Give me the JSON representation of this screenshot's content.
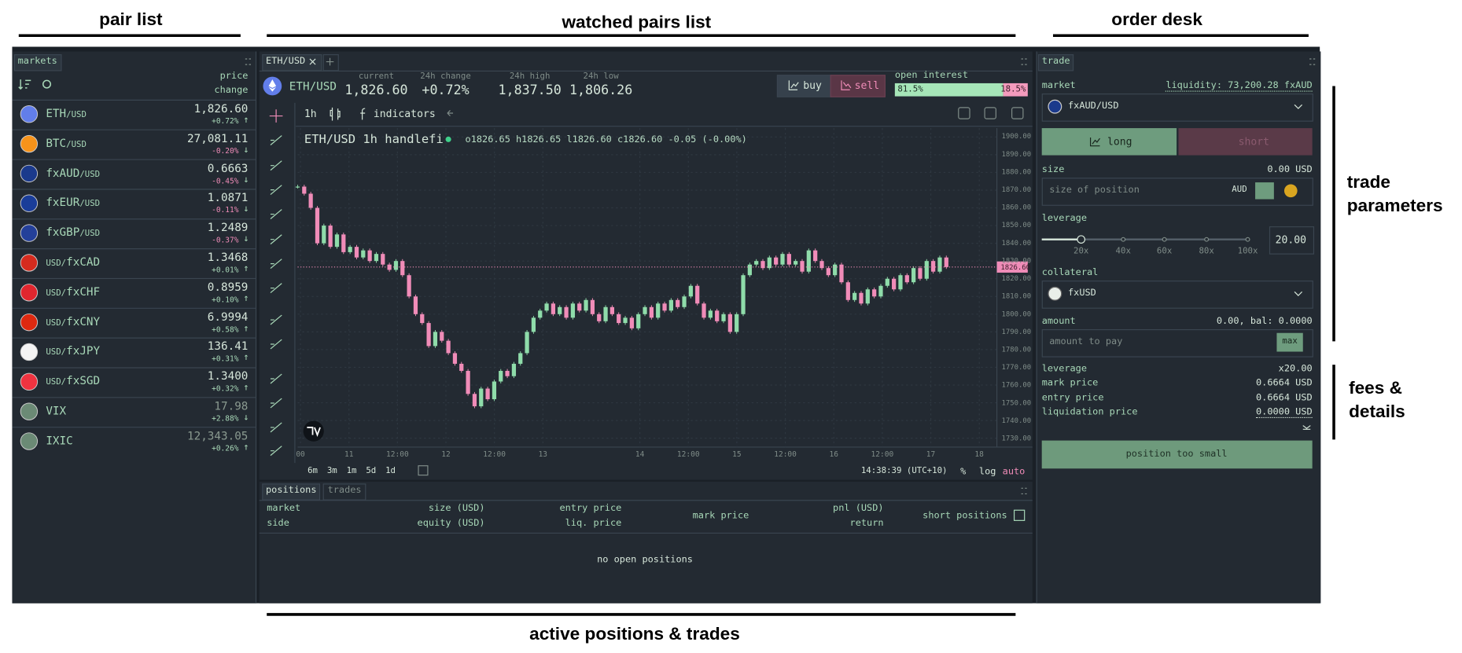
{
  "annotations": {
    "pair_list": "pair list",
    "watched_pairs_list": "watched pairs list",
    "order_desk": "order desk",
    "trade_parameters": "trade parameters",
    "fees_details": "fees & details",
    "active_positions": "active positions & trades"
  },
  "markets": {
    "tab": "markets",
    "column_header": [
      "price",
      "change"
    ],
    "pairs": [
      {
        "name": "ETH",
        "quote": "/USD",
        "price": "1,826.60",
        "change": "+0.72%",
        "arrow": "↑",
        "icon_color": "#627eea"
      },
      {
        "name": "BTC",
        "quote": "/USD",
        "price": "27,081.11",
        "change": "-0.20%",
        "arrow": "↓",
        "icon_color": "#f7931a"
      },
      {
        "name": "fxAUD",
        "quote": "/USD",
        "price": "0.6663",
        "change": "-0.45%",
        "arrow": "↓",
        "icon_color": "#1b3a8c"
      },
      {
        "name": "fxEUR",
        "quote": "/USD",
        "price": "1.0871",
        "change": "-0.11%",
        "arrow": "↓",
        "icon_color": "#1a3d99"
      },
      {
        "name": "fxGBP",
        "quote": "/USD",
        "price": "1.2489",
        "change": "-0.37%",
        "arrow": "↓",
        "icon_color": "#24409a"
      },
      {
        "base": "USD/",
        "name": "fxCAD",
        "price": "1.3468",
        "change": "+0.01%",
        "arrow": "↑",
        "icon_color": "#d52b1e"
      },
      {
        "base": "USD/",
        "name": "fxCHF",
        "price": "0.8959",
        "change": "+0.10%",
        "arrow": "↑",
        "icon_color": "#e0262e"
      },
      {
        "base": "USD/",
        "name": "fxCNY",
        "price": "6.9994",
        "change": "+0.58%",
        "arrow": "↑",
        "icon_color": "#de2910"
      },
      {
        "base": "USD/",
        "name": "fxJPY",
        "price": "136.41",
        "change": "+0.31%",
        "arrow": "↑",
        "icon_color": "#f4f4f4"
      },
      {
        "base": "USD/",
        "name": "fxSGD",
        "price": "1.3400",
        "change": "+0.32%",
        "arrow": "↑",
        "icon_color": "#ef3340"
      },
      {
        "name": "VIX",
        "price": "17.98",
        "change": "+2.88%",
        "arrow": "↓",
        "icon_color": "#6b8a75",
        "price_color": "#8a9a90"
      },
      {
        "name": "IXIC",
        "price": "12,343.05",
        "change": "+0.26%",
        "arrow": "↑",
        "icon_color": "#6b8a75",
        "price_color": "#8a9a90"
      }
    ]
  },
  "chart_panel": {
    "tab": "ETH/USD",
    "ticker": {
      "pair": "ETH/USD",
      "stats": [
        {
          "label": "current",
          "value": "1,826.60"
        },
        {
          "label": "24h change",
          "value": "+0.72%"
        },
        {
          "label": "24h high",
          "value": "1,837.50"
        },
        {
          "label": "24h low",
          "value": "1,806.26"
        }
      ]
    },
    "buy": "buy",
    "sell": "sell",
    "open_interest": {
      "label": "open interest",
      "values": [
        81.5,
        18.5
      ],
      "value_labels": [
        "81.5%",
        "18.5%"
      ]
    },
    "toolbar": {
      "interval": "1h",
      "indicators": "indicators"
    },
    "legend": {
      "title": "ETH/USD 1h handlefi",
      "ohlc": "o1826.65 h1826.65 l1826.60 c1826.60 -0.05 (-0.00%)"
    },
    "chart": {
      "type": "candlestick",
      "closes": [
        1872,
        1868,
        1860,
        1840,
        1850,
        1838,
        1845,
        1835,
        1838,
        1832,
        1836,
        1830,
        1834,
        1828,
        1825,
        1830,
        1822,
        1810,
        1800,
        1795,
        1782,
        1790,
        1785,
        1778,
        1772,
        1768,
        1755,
        1748,
        1758,
        1752,
        1762,
        1768,
        1765,
        1772,
        1778,
        1790,
        1798,
        1802,
        1806,
        1800,
        1804,
        1798,
        1806,
        1802,
        1808,
        1800,
        1796,
        1804,
        1800,
        1795,
        1798,
        1792,
        1800,
        1804,
        1798,
        1806,
        1802,
        1808,
        1804,
        1810,
        1816,
        1806,
        1798,
        1802,
        1796,
        1800,
        1790,
        1800,
        1822,
        1828,
        1830,
        1826,
        1832,
        1828,
        1834,
        1828,
        1830,
        1824,
        1836,
        1830,
        1826,
        1822,
        1828,
        1818,
        1808,
        1812,
        1806,
        1814,
        1810,
        1816,
        1820,
        1814,
        1822,
        1818,
        1826,
        1820,
        1830,
        1824,
        1832,
        1826.6
      ],
      "ylim": [
        1725,
        1905
      ],
      "yticks": [
        {
          "value": 1900,
          "label": "1900.00"
        },
        {
          "value": 1890,
          "label": "1890.00"
        },
        {
          "value": 1880,
          "label": "1880.00"
        },
        {
          "value": 1870,
          "label": "1870.00"
        },
        {
          "value": 1860,
          "label": "1860.00"
        },
        {
          "value": 1850,
          "label": "1850.00"
        },
        {
          "value": 1840,
          "label": "1840.00"
        },
        {
          "value": 1830,
          "label": "1830.00"
        },
        {
          "value": 1820,
          "label": "1820.00"
        },
        {
          "value": 1810,
          "label": "1810.00"
        },
        {
          "value": 1800,
          "label": "1800.00"
        },
        {
          "value": 1790,
          "label": "1790.00"
        },
        {
          "value": 1780,
          "label": "1780.00"
        },
        {
          "value": 1770,
          "label": "1770.00"
        },
        {
          "value": 1760,
          "label": "1760.00"
        },
        {
          "value": 1750,
          "label": "1750.00"
        },
        {
          "value": 1740,
          "label": "1740.00"
        },
        {
          "value": 1730,
          "label": "1730.00"
        }
      ],
      "x_labels": [
        "00",
        "11",
        "12:00",
        "12",
        "12:00",
        "13",
        null,
        "14",
        "12:00",
        "15",
        "12:00",
        "16",
        "12:00",
        "17",
        "18"
      ],
      "last_price": {
        "value": 1826.6,
        "label": "1826.60"
      },
      "up_color": "#8fdcaa",
      "down_color": "#f08cb8",
      "grid": true
    },
    "ranges": [
      "6m",
      "3m",
      "1m",
      "5d",
      "1d"
    ],
    "clock": "14:38:39 (UTC+10)",
    "scale_options": [
      "%",
      "log",
      "auto"
    ]
  },
  "positions_panel": {
    "tabs": [
      "positions",
      "trades"
    ],
    "columns": [
      {
        "top": "market",
        "bottom": "side"
      },
      {
        "top": "size (USD)",
        "bottom": "equity (USD)"
      },
      {
        "top": "entry price",
        "bottom": "liq. price"
      },
      {
        "top": "mark price"
      },
      {
        "top": "pnl (USD)",
        "bottom": "return"
      }
    ],
    "short_positions": "short positions",
    "empty": "no open positions"
  },
  "order_desk": {
    "tab": "trade",
    "market_label": "market",
    "liquidity": "liquidity: 73,200.28 fxAUD",
    "market_value": "fxAUD/USD",
    "long": "long",
    "short": "short",
    "size_label": "size",
    "size_value": "0.00 USD",
    "size_placeholder": "size of position",
    "size_unit": "AUD",
    "leverage_label": "leverage",
    "leverage_ticks": [
      "20x",
      "40x",
      "60x",
      "80x",
      "100x"
    ],
    "leverage_input": "20.00",
    "collateral_label": "collateral",
    "collateral_value": "fxUSD",
    "amount_label": "amount",
    "amount_value": "0.00, bal: 0.0000",
    "amount_placeholder": "amount to pay",
    "max": "max",
    "details": [
      {
        "label": "leverage",
        "value": "x20.00"
      },
      {
        "label": "mark price",
        "value": "0.6664 USD"
      },
      {
        "label": "entry price",
        "value": "0.6664 USD"
      },
      {
        "label": "liquidation price",
        "value": "0.0000 USD"
      }
    ],
    "submit": "position too small"
  }
}
